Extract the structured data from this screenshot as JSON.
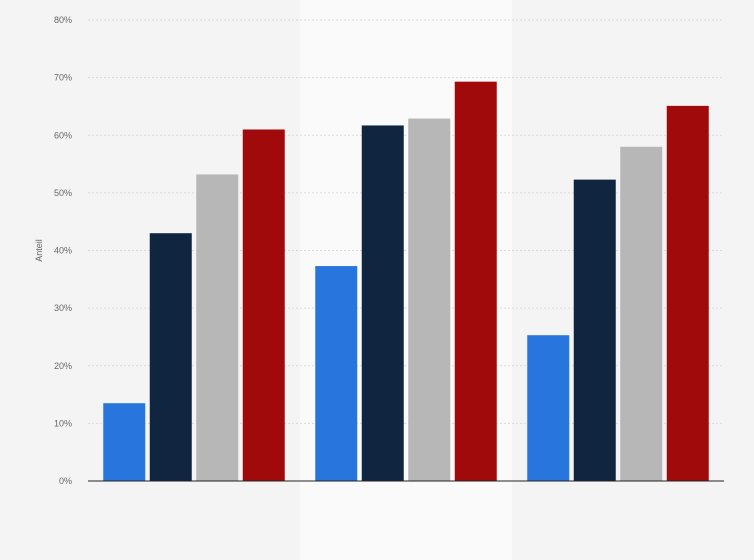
{
  "chart_data": {
    "type": "bar",
    "title": "",
    "xlabel": "",
    "ylabel": "Anteil",
    "ylim": [
      0,
      80
    ],
    "yticks": [
      0,
      10,
      20,
      30,
      40,
      50,
      60,
      70,
      80
    ],
    "ytick_labels": [
      "0%",
      "10%",
      "20%",
      "30%",
      "40%",
      "50%",
      "60%",
      "70%",
      "80%"
    ],
    "grid": true,
    "legend": "none",
    "categories": [
      "",
      "",
      ""
    ],
    "highlighted_category_index": 1,
    "series": [
      {
        "color": "#2876dd",
        "values": [
          13.5,
          37.3,
          25.3
        ]
      },
      {
        "color": "#10253f",
        "values": [
          43.0,
          61.7,
          52.3
        ]
      },
      {
        "color": "#b7b7b7",
        "values": [
          53.2,
          62.9,
          58.0
        ]
      },
      {
        "color": "#a10a0a",
        "values": [
          61.0,
          69.3,
          65.1
        ]
      }
    ]
  }
}
